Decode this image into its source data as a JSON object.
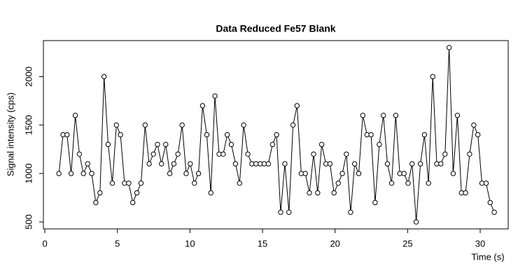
{
  "chart_data": {
    "type": "line",
    "title": "Data Reduced Fe57 Blank",
    "xlabel": "Time (s)",
    "ylabel": "Signal intensity (cps)",
    "x": [
      0.97,
      1.25,
      1.53,
      1.81,
      2.1,
      2.38,
      2.66,
      2.95,
      3.23,
      3.51,
      3.8,
      4.08,
      4.36,
      4.65,
      4.93,
      5.21,
      5.49,
      5.78,
      6.06,
      6.34,
      6.63,
      6.91,
      7.19,
      7.48,
      7.76,
      8.04,
      8.33,
      8.61,
      8.89,
      9.17,
      9.46,
      9.74,
      10.02,
      10.31,
      10.59,
      10.87,
      11.16,
      11.44,
      11.72,
      12.01,
      12.29,
      12.57,
      12.85,
      13.14,
      13.42,
      13.7,
      13.99,
      14.27,
      14.55,
      14.84,
      15.12,
      15.4,
      15.69,
      15.97,
      16.25,
      16.54,
      16.82,
      17.1,
      17.38,
      17.67,
      17.95,
      18.23,
      18.52,
      18.8,
      19.08,
      19.37,
      19.65,
      19.93,
      20.22,
      20.5,
      20.78,
      21.07,
      21.35,
      21.63,
      21.91,
      22.2,
      22.48,
      22.76,
      23.05,
      23.33,
      23.61,
      23.9,
      24.18,
      24.46,
      24.75,
      25.03,
      25.31,
      25.59,
      25.88,
      26.16,
      26.44,
      26.73,
      27.01,
      27.29,
      27.58,
      27.86,
      28.14,
      28.43,
      28.71,
      28.99,
      29.27,
      29.56,
      29.84,
      30.12,
      30.41,
      30.69,
      30.97
    ],
    "values": [
      1000,
      1400,
      1400,
      1000,
      1600,
      1200,
      1000,
      1100,
      1000,
      700,
      800,
      2000,
      1300,
      900,
      1500,
      1400,
      900,
      900,
      700,
      800,
      900,
      1500,
      1100,
      1200,
      1300,
      1100,
      1300,
      1000,
      1100,
      1200,
      1500,
      1000,
      1100,
      900,
      1000,
      1700,
      1400,
      800,
      1800,
      1200,
      1200,
      1400,
      1300,
      1100,
      900,
      1500,
      1200,
      1100,
      1100,
      1100,
      1100,
      1100,
      1300,
      1400,
      600,
      1100,
      600,
      1500,
      1700,
      1000,
      1000,
      800,
      1200,
      800,
      1300,
      1100,
      1100,
      800,
      900,
      1000,
      1200,
      600,
      1100,
      1000,
      1600,
      1400,
      1400,
      700,
      1300,
      1600,
      1100,
      900,
      1600,
      1000,
      1000,
      900,
      1100,
      500,
      1100,
      1400,
      900,
      2000,
      1100,
      1100,
      1200,
      2300,
      1000,
      1600,
      800,
      800,
      1200,
      1500,
      1400,
      900,
      900,
      700,
      600
    ],
    "color": "#000000",
    "xlim": [
      -0.1,
      31.93
    ],
    "ylim": [
      428,
      2372
    ],
    "xticks": [
      0,
      5,
      10,
      15,
      20,
      25,
      30
    ],
    "yticks": [
      500,
      1000,
      1500,
      2000
    ]
  }
}
